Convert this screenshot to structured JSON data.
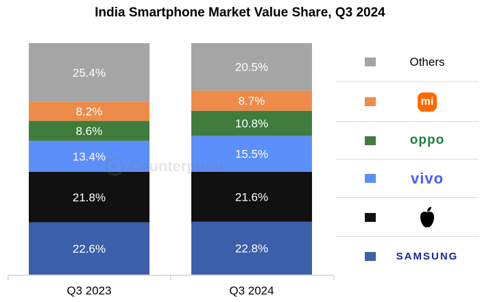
{
  "title": "India Smartphone Market Value Share, Q3 2024",
  "watermark": "Counterpoint",
  "legend": [
    {
      "key": "others",
      "label": "Others",
      "color": "#a5a5a5",
      "logo": "text"
    },
    {
      "key": "xiaomi",
      "label": "mi",
      "color": "#ed8b4a",
      "logo": "mi-logo-icon"
    },
    {
      "key": "oppo",
      "label": "oppo",
      "color": "#3f7d3c",
      "logo": "oppo-logo-icon"
    },
    {
      "key": "vivo",
      "label": "vivo",
      "color": "#5b8ff9",
      "logo": "vivo-logo-icon"
    },
    {
      "key": "apple",
      "label": "",
      "color": "#111111",
      "logo": "apple-logo-icon"
    },
    {
      "key": "samsung",
      "label": "SAMSUNG",
      "color": "#3b5fa8",
      "logo": "samsung-logo-icon"
    }
  ],
  "chart_data": {
    "type": "bar",
    "stacked": true,
    "title": "India Smartphone Market Value Share, Q3 2024",
    "categories": [
      "Q3 2023",
      "Q3 2024"
    ],
    "series": [
      {
        "name": "SAMSUNG",
        "color": "#3b5fa8",
        "values": [
          22.6,
          22.8
        ],
        "labels": [
          "22.6%",
          "22.8%"
        ]
      },
      {
        "name": "Apple",
        "color": "#111111",
        "values": [
          21.8,
          21.6
        ],
        "labels": [
          "21.8%",
          "21.6%"
        ]
      },
      {
        "name": "vivo",
        "color": "#5b8ff9",
        "values": [
          13.4,
          15.5
        ],
        "labels": [
          "13.4%",
          "15.5%"
        ]
      },
      {
        "name": "oppo",
        "color": "#3f7d3c",
        "values": [
          8.6,
          10.8
        ],
        "labels": [
          "8.6%",
          "10.8%"
        ]
      },
      {
        "name": "mi",
        "color": "#ed8b4a",
        "values": [
          8.2,
          8.7
        ],
        "labels": [
          "8.2%",
          "8.7%"
        ]
      },
      {
        "name": "Others",
        "color": "#a5a5a5",
        "values": [
          25.4,
          20.5
        ],
        "labels": [
          "25.4%",
          "20.5%"
        ]
      }
    ],
    "ylim": [
      0,
      100
    ],
    "legend_position": "right",
    "grid": false
  }
}
